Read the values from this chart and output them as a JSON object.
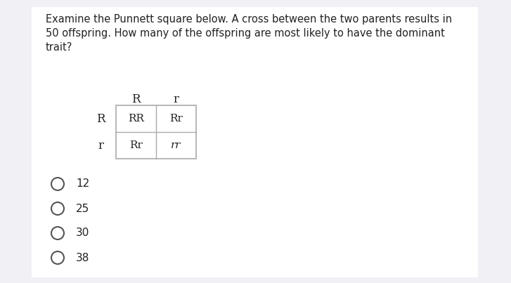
{
  "background_color": "#f0f0f5",
  "content_bg": "#ffffff",
  "title_lines": [
    "Examine the Punnett square below. A cross between the two parents results in",
    "50 offspring. How many of the offspring are most likely to have the dominant",
    "trait?"
  ],
  "title_fontsize": 10.5,
  "title_color": "#222222",
  "punnett": {
    "col_headers": [
      "R",
      "r"
    ],
    "row_headers": [
      "R",
      "r"
    ],
    "cells": [
      [
        "RR",
        "Rr"
      ],
      [
        "Rr",
        "rr"
      ]
    ],
    "cell_fontsize": 11,
    "header_fontsize": 12
  },
  "options": [
    "12",
    "25",
    "30",
    "38"
  ],
  "option_fontsize": 11,
  "option_color": "#222222",
  "circle_color": "#555555"
}
